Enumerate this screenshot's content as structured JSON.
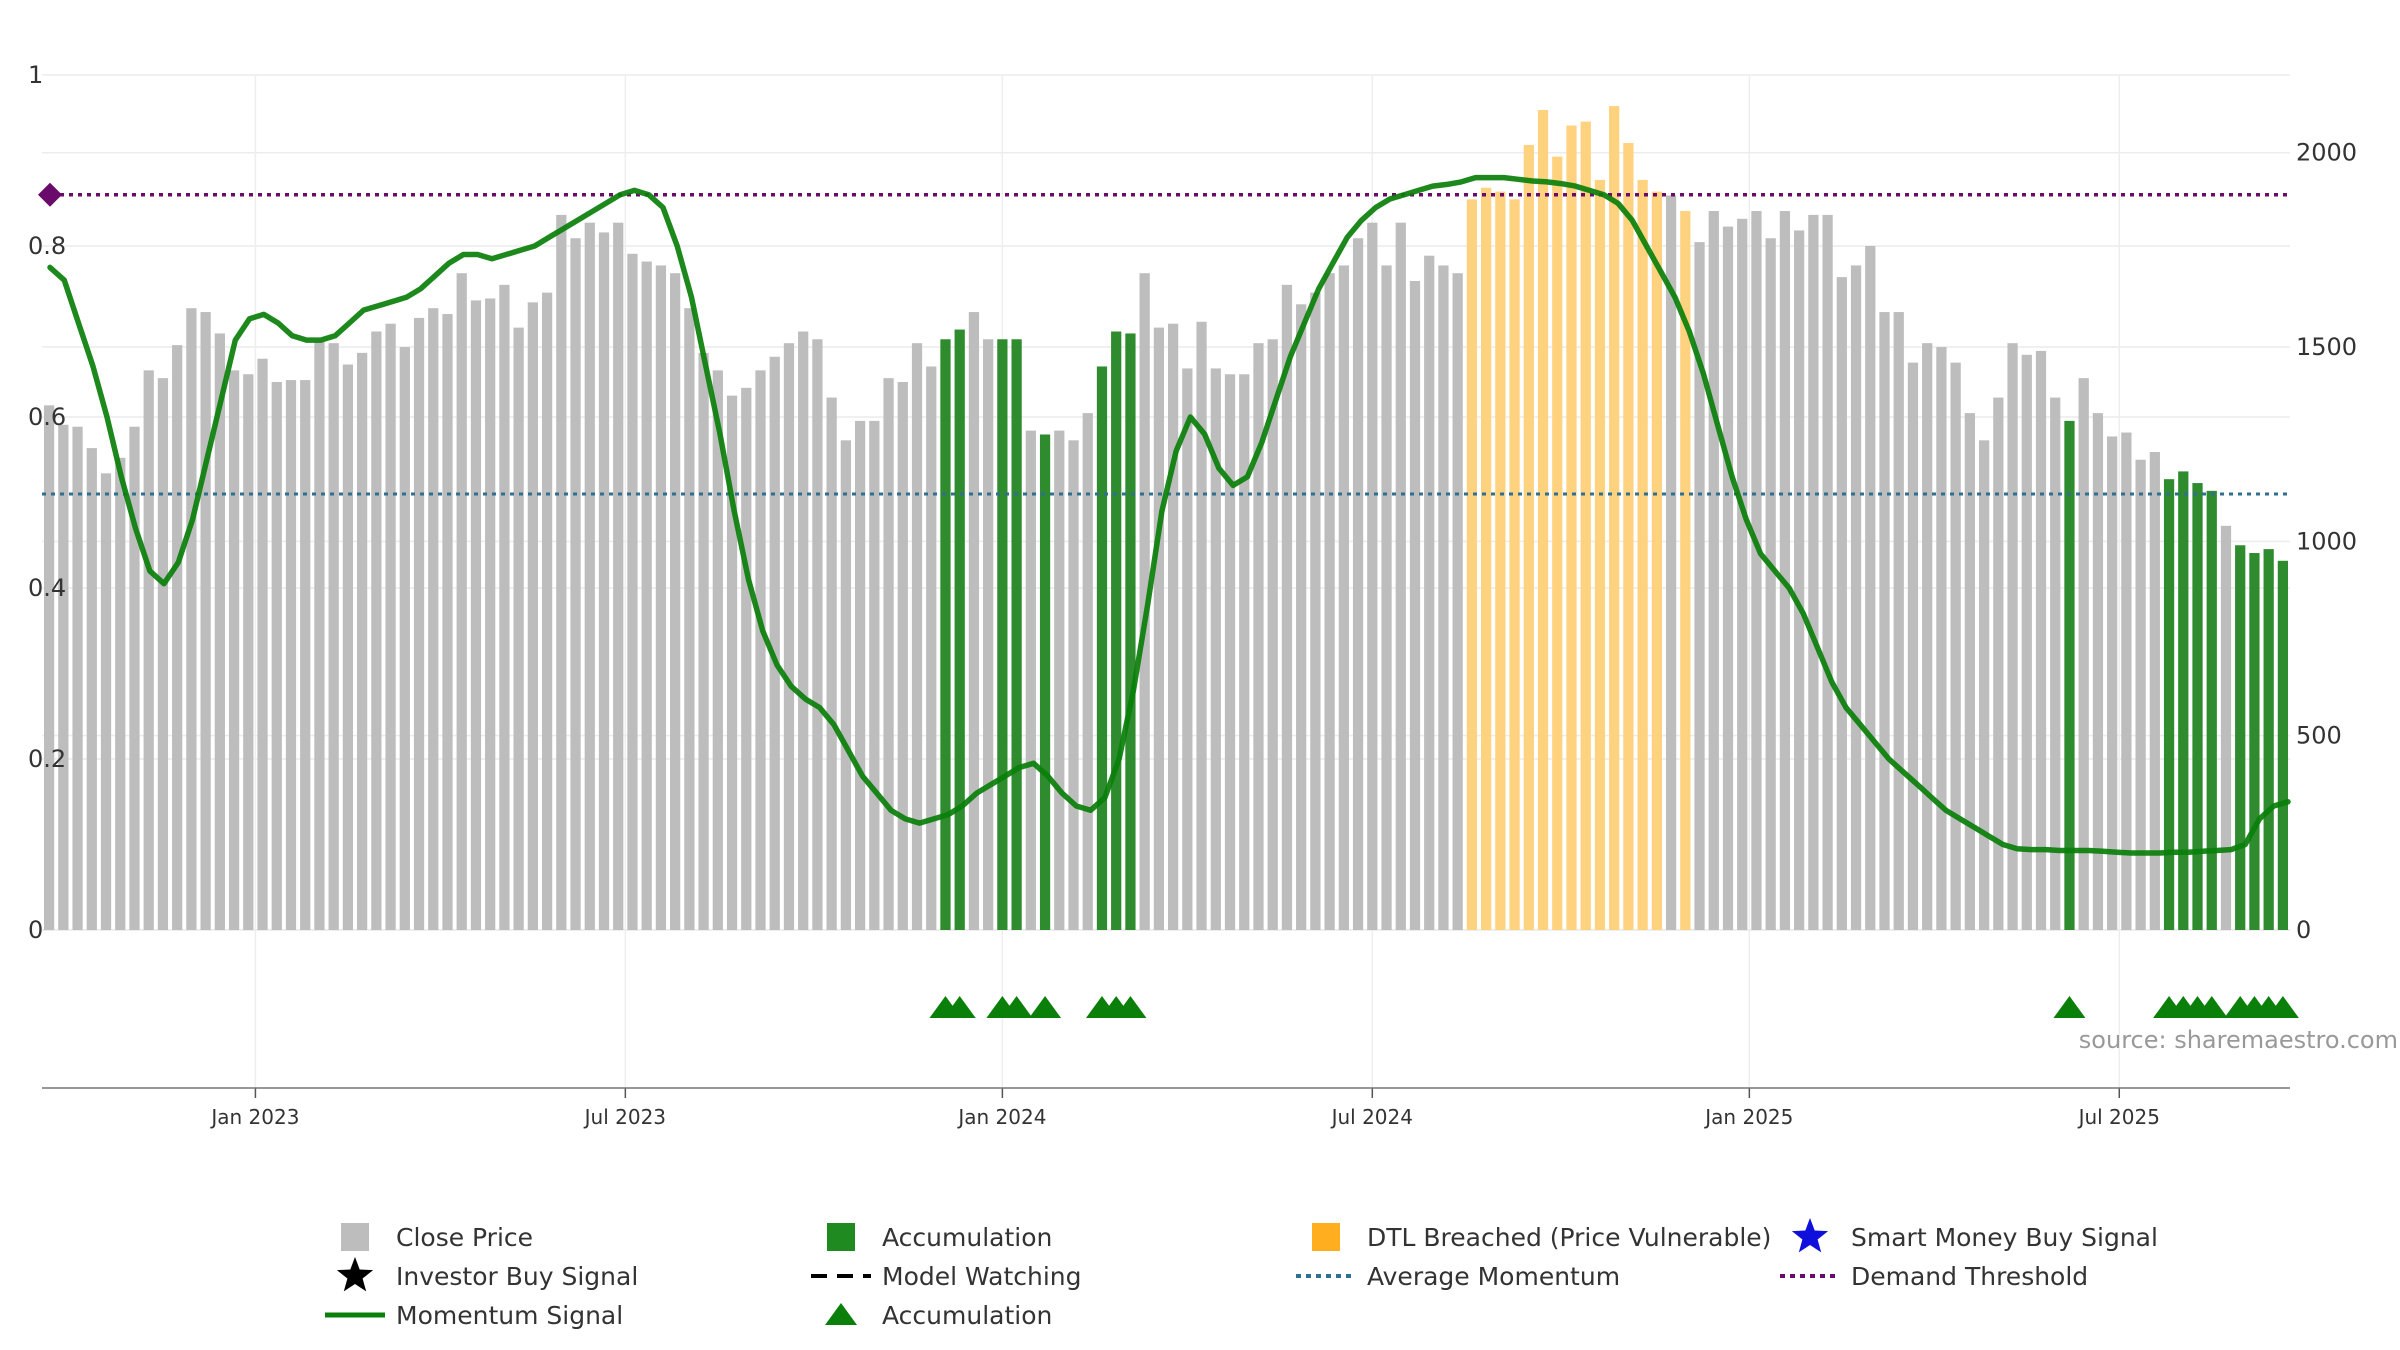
{
  "chart_data": {
    "type": "bar",
    "title": "",
    "left_axis": {
      "ticks": [
        "0",
        "0.2",
        "0.4",
        "0.6",
        "0.8",
        "1"
      ],
      "range": [
        0,
        1
      ]
    },
    "right_axis": {
      "ticks": [
        "0",
        "500",
        "1000",
        "1500",
        "2000"
      ],
      "range": [
        0,
        2200
      ]
    },
    "x_ticks": [
      {
        "label": "Jan 2023",
        "week": 15
      },
      {
        "label": "Jul 2023",
        "week": 41
      },
      {
        "label": "Jan 2024",
        "week": 67.5
      },
      {
        "label": "Jul 2024",
        "week": 93.5
      },
      {
        "label": "Jan 2025",
        "week": 120
      },
      {
        "label": "Jul 2025",
        "week": 146
      }
    ],
    "n_weeks": 158,
    "close_prices": [
      1350,
      1300,
      1295,
      1240,
      1175,
      1215,
      1295,
      1440,
      1420,
      1505,
      1600,
      1590,
      1535,
      1440,
      1430,
      1470,
      1410,
      1415,
      1415,
      1515,
      1510,
      1455,
      1485,
      1540,
      1560,
      1500,
      1575,
      1600,
      1585,
      1690,
      1620,
      1625,
      1660,
      1550,
      1615,
      1640,
      1840,
      1780,
      1820,
      1795,
      1820,
      1740,
      1720,
      1710,
      1690,
      1600,
      1485,
      1440,
      1375,
      1395,
      1440,
      1475,
      1510,
      1540,
      1520,
      1370,
      1260,
      1310,
      1310,
      1420,
      1410,
      1510,
      1450,
      1520,
      1545,
      1590,
      1520,
      1520,
      1520,
      1285,
      1275,
      1285,
      1260,
      1330,
      1450,
      1540,
      1535,
      1690,
      1550,
      1560,
      1445,
      1565,
      1445,
      1430,
      1430,
      1510,
      1520,
      1660,
      1610,
      1640,
      1690,
      1710,
      1780,
      1820,
      1710,
      1820,
      1670,
      1735,
      1710,
      1690,
      1880,
      1910,
      1900,
      1880,
      2020,
      2110,
      1990,
      2070,
      2080,
      1930,
      2120,
      2025,
      1930,
      1900,
      1890,
      1850,
      1770,
      1850,
      1810,
      1830,
      1850,
      1780,
      1850,
      1800,
      1840,
      1840,
      1680,
      1710,
      1760,
      1590,
      1590,
      1460,
      1510,
      1500,
      1460,
      1330,
      1260,
      1370,
      1510,
      1480,
      1490,
      1370,
      1310,
      1420,
      1330,
      1270,
      1280,
      1210,
      1230,
      1160,
      1180,
      1150,
      1130,
      1040,
      990,
      970,
      980,
      950
    ],
    "accumulation_weeks": [
      63,
      64,
      67,
      68,
      70,
      74,
      75,
      76,
      142,
      149,
      150,
      151,
      152,
      154,
      155,
      156,
      157
    ],
    "dtl_breached_weeks": [
      100,
      101,
      102,
      103,
      104,
      105,
      106,
      107,
      108,
      109,
      110,
      111,
      112,
      113,
      115
    ],
    "momentum_anchor_weeks": [
      0,
      1,
      2,
      3,
      4,
      5,
      6,
      7,
      8,
      9,
      10,
      11,
      12,
      13,
      14,
      15,
      16,
      17,
      18,
      19,
      20,
      21,
      22,
      23,
      24,
      25,
      26,
      27,
      28,
      29,
      30,
      31,
      32,
      33,
      34,
      35,
      36,
      37,
      38,
      39,
      40,
      41,
      42,
      43,
      44,
      45,
      46,
      47,
      48,
      49,
      50,
      51,
      52,
      53,
      54,
      55,
      56,
      57,
      58,
      59,
      60,
      61,
      62,
      63,
      64,
      65,
      66,
      67,
      68,
      69,
      70,
      71,
      72,
      73,
      74,
      75,
      76,
      77,
      78,
      79,
      80,
      81,
      82,
      83,
      84,
      85,
      86,
      87,
      88,
      89,
      90,
      91,
      92,
      93,
      94,
      95,
      96,
      97,
      98,
      99,
      100,
      101,
      102,
      103,
      104,
      105,
      106,
      107,
      108,
      109,
      110,
      111,
      112,
      113,
      114,
      115,
      116,
      117,
      118,
      119,
      120,
      121,
      122,
      123,
      124,
      125,
      126,
      127,
      128,
      129,
      130,
      131,
      132,
      133,
      134,
      135,
      136,
      137,
      138,
      139,
      140,
      141,
      142,
      143,
      144,
      145,
      146,
      147,
      148,
      149,
      150,
      151,
      152,
      153,
      154,
      155,
      156,
      157
    ],
    "momentum_signal": [
      0.775,
      0.76,
      0.71,
      0.66,
      0.6,
      0.53,
      0.47,
      0.42,
      0.405,
      0.43,
      0.48,
      0.55,
      0.62,
      0.69,
      0.715,
      0.72,
      0.71,
      0.695,
      0.69,
      0.69,
      0.695,
      0.71,
      0.725,
      0.73,
      0.735,
      0.74,
      0.75,
      0.765,
      0.78,
      0.79,
      0.79,
      0.785,
      0.79,
      0.795,
      0.8,
      0.81,
      0.82,
      0.83,
      0.84,
      0.85,
      0.86,
      0.865,
      0.86,
      0.845,
      0.8,
      0.74,
      0.66,
      0.58,
      0.49,
      0.41,
      0.35,
      0.31,
      0.285,
      0.27,
      0.26,
      0.24,
      0.21,
      0.18,
      0.16,
      0.14,
      0.13,
      0.125,
      0.13,
      0.135,
      0.145,
      0.16,
      0.17,
      0.18,
      0.19,
      0.195,
      0.18,
      0.16,
      0.145,
      0.14,
      0.155,
      0.2,
      0.28,
      0.38,
      0.49,
      0.56,
      0.6,
      0.58,
      0.54,
      0.52,
      0.53,
      0.57,
      0.62,
      0.67,
      0.71,
      0.75,
      0.78,
      0.81,
      0.83,
      0.845,
      0.855,
      0.86,
      0.865,
      0.87,
      0.872,
      0.875,
      0.88,
      0.88,
      0.88,
      0.878,
      0.876,
      0.875,
      0.873,
      0.87,
      0.865,
      0.86,
      0.85,
      0.83,
      0.8,
      0.77,
      0.74,
      0.7,
      0.65,
      0.59,
      0.53,
      0.48,
      0.44,
      0.42,
      0.4,
      0.37,
      0.33,
      0.29,
      0.26,
      0.24,
      0.22,
      0.2,
      0.185,
      0.17,
      0.155,
      0.14,
      0.13,
      0.12,
      0.11,
      0.1,
      0.095,
      0.094,
      0.094,
      0.093,
      0.093,
      0.093,
      0.092,
      0.091,
      0.09,
      0.09,
      0.09,
      0.091,
      0.091,
      0.092,
      0.093,
      0.094,
      0.1,
      0.13,
      0.145,
      0.15
    ],
    "average_momentum": 0.51,
    "demand_threshold": 0.86,
    "accumulation_markers": [
      63,
      64,
      67,
      68,
      70,
      74,
      75,
      76,
      142,
      149,
      150,
      151,
      152,
      154,
      155,
      156,
      157
    ],
    "colors": {
      "close_price": "#bdbdbd",
      "accumulation": "#2e8b2e",
      "dtl_breached": "#ffd27f",
      "momentum": "#0a7f0a",
      "average_momentum": "#2f6f8f",
      "demand_threshold": "#6a0a6a",
      "marker": "#0a7f0a"
    },
    "source_text": "source: sharemaestro.com"
  },
  "legend": {
    "items": [
      {
        "label": "Close Price",
        "swatch": "grey-square"
      },
      {
        "label": "Accumulation",
        "swatch": "green-square"
      },
      {
        "label": "DTL Breached (Price Vulnerable)",
        "swatch": "orange-square"
      },
      {
        "label": "Smart Money Buy Signal",
        "swatch": "blue-star"
      },
      {
        "label": "Investor Buy Signal",
        "swatch": "black-star"
      },
      {
        "label": "Model Watching",
        "swatch": "black-dash"
      },
      {
        "label": "Average Momentum",
        "swatch": "blue-dotted"
      },
      {
        "label": "Demand Threshold",
        "swatch": "purple-dotted"
      },
      {
        "label": "Momentum Signal",
        "swatch": "green-line"
      },
      {
        "label": "Accumulation",
        "swatch": "green-triangle"
      }
    ]
  }
}
